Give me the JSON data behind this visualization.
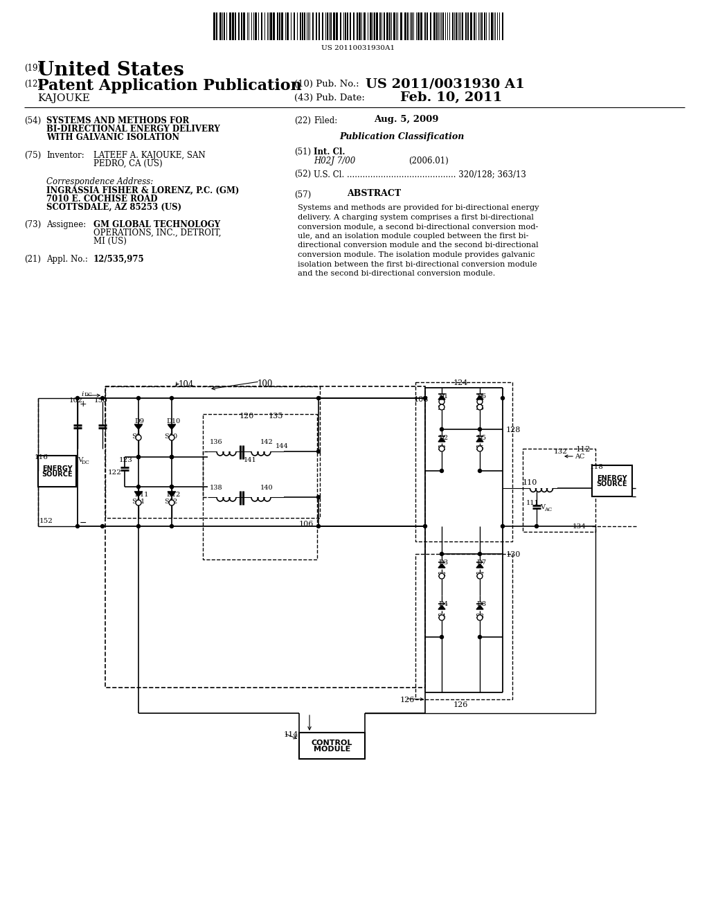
{
  "bg_color": "#ffffff",
  "barcode_text": "US 20110031930A1",
  "country_label": "(19)",
  "country": "United States",
  "pub_type_label": "(12)",
  "pub_type": "Patent Application Publication",
  "inventor_last": "KAJOUKE",
  "pub_no_label": "(10) Pub. No.:",
  "pub_no": "US 2011/0031930 A1",
  "pub_date_label": "(43) Pub. Date:",
  "pub_date": "Feb. 10, 2011",
  "f54_label": "(54)",
  "f54_line1": "SYSTEMS AND METHODS FOR",
  "f54_line2": "BI-DIRECTIONAL ENERGY DELIVERY",
  "f54_line3": "WITH GALVANIC ISOLATION",
  "f22_label": "(22)",
  "f22_key": "Filed:",
  "f22_val": "Aug. 5, 2009",
  "f75_label": "(75)",
  "f75_key": "Inventor:",
  "f75_val1": "LATEEF A. KAJOUKE, SAN",
  "f75_val2": "PEDRO, CA (US)",
  "corr_label": "Correspondence Address:",
  "corr1": "INGRASSIA FISHER & LORENZ, P.C. (GM)",
  "corr2": "7010 E. COCHISE ROAD",
  "corr3": "SCOTTSDALE, AZ 85253 (US)",
  "pub_class_hdr": "Publication Classification",
  "f51_label": "(51)",
  "f51_key": "Int. Cl.",
  "f51_class": "H02J 7/00",
  "f51_year": "(2006.01)",
  "f52_label": "(52)",
  "f52_val": "U.S. Cl. .......................................... 320/128; 363/13",
  "f73_label": "(73)",
  "f73_key": "Assignee:",
  "f73_val1": "GM GLOBAL TECHNOLOGY",
  "f73_val2": "OPERATIONS, INC., DETROIT,",
  "f73_val3": "MI (US)",
  "f21_label": "(21)",
  "f21_key": "Appl. No.:",
  "f21_val": "12/535,975",
  "f57_label": "(57)",
  "f57_key": "ABSTRACT",
  "abstract": "Systems and methods are provided for bi-directional energy\ndelivery. A charging system comprises a first bi-directional\nconversion module, a second bi-directional conversion mod-\nule, and an isolation module coupled between the first bi-\ndirectional conversion module and the second bi-directional\nconversion module. The isolation module provides galvanic\nisolation between the first bi-directional conversion module\nand the second bi-directional conversion module."
}
